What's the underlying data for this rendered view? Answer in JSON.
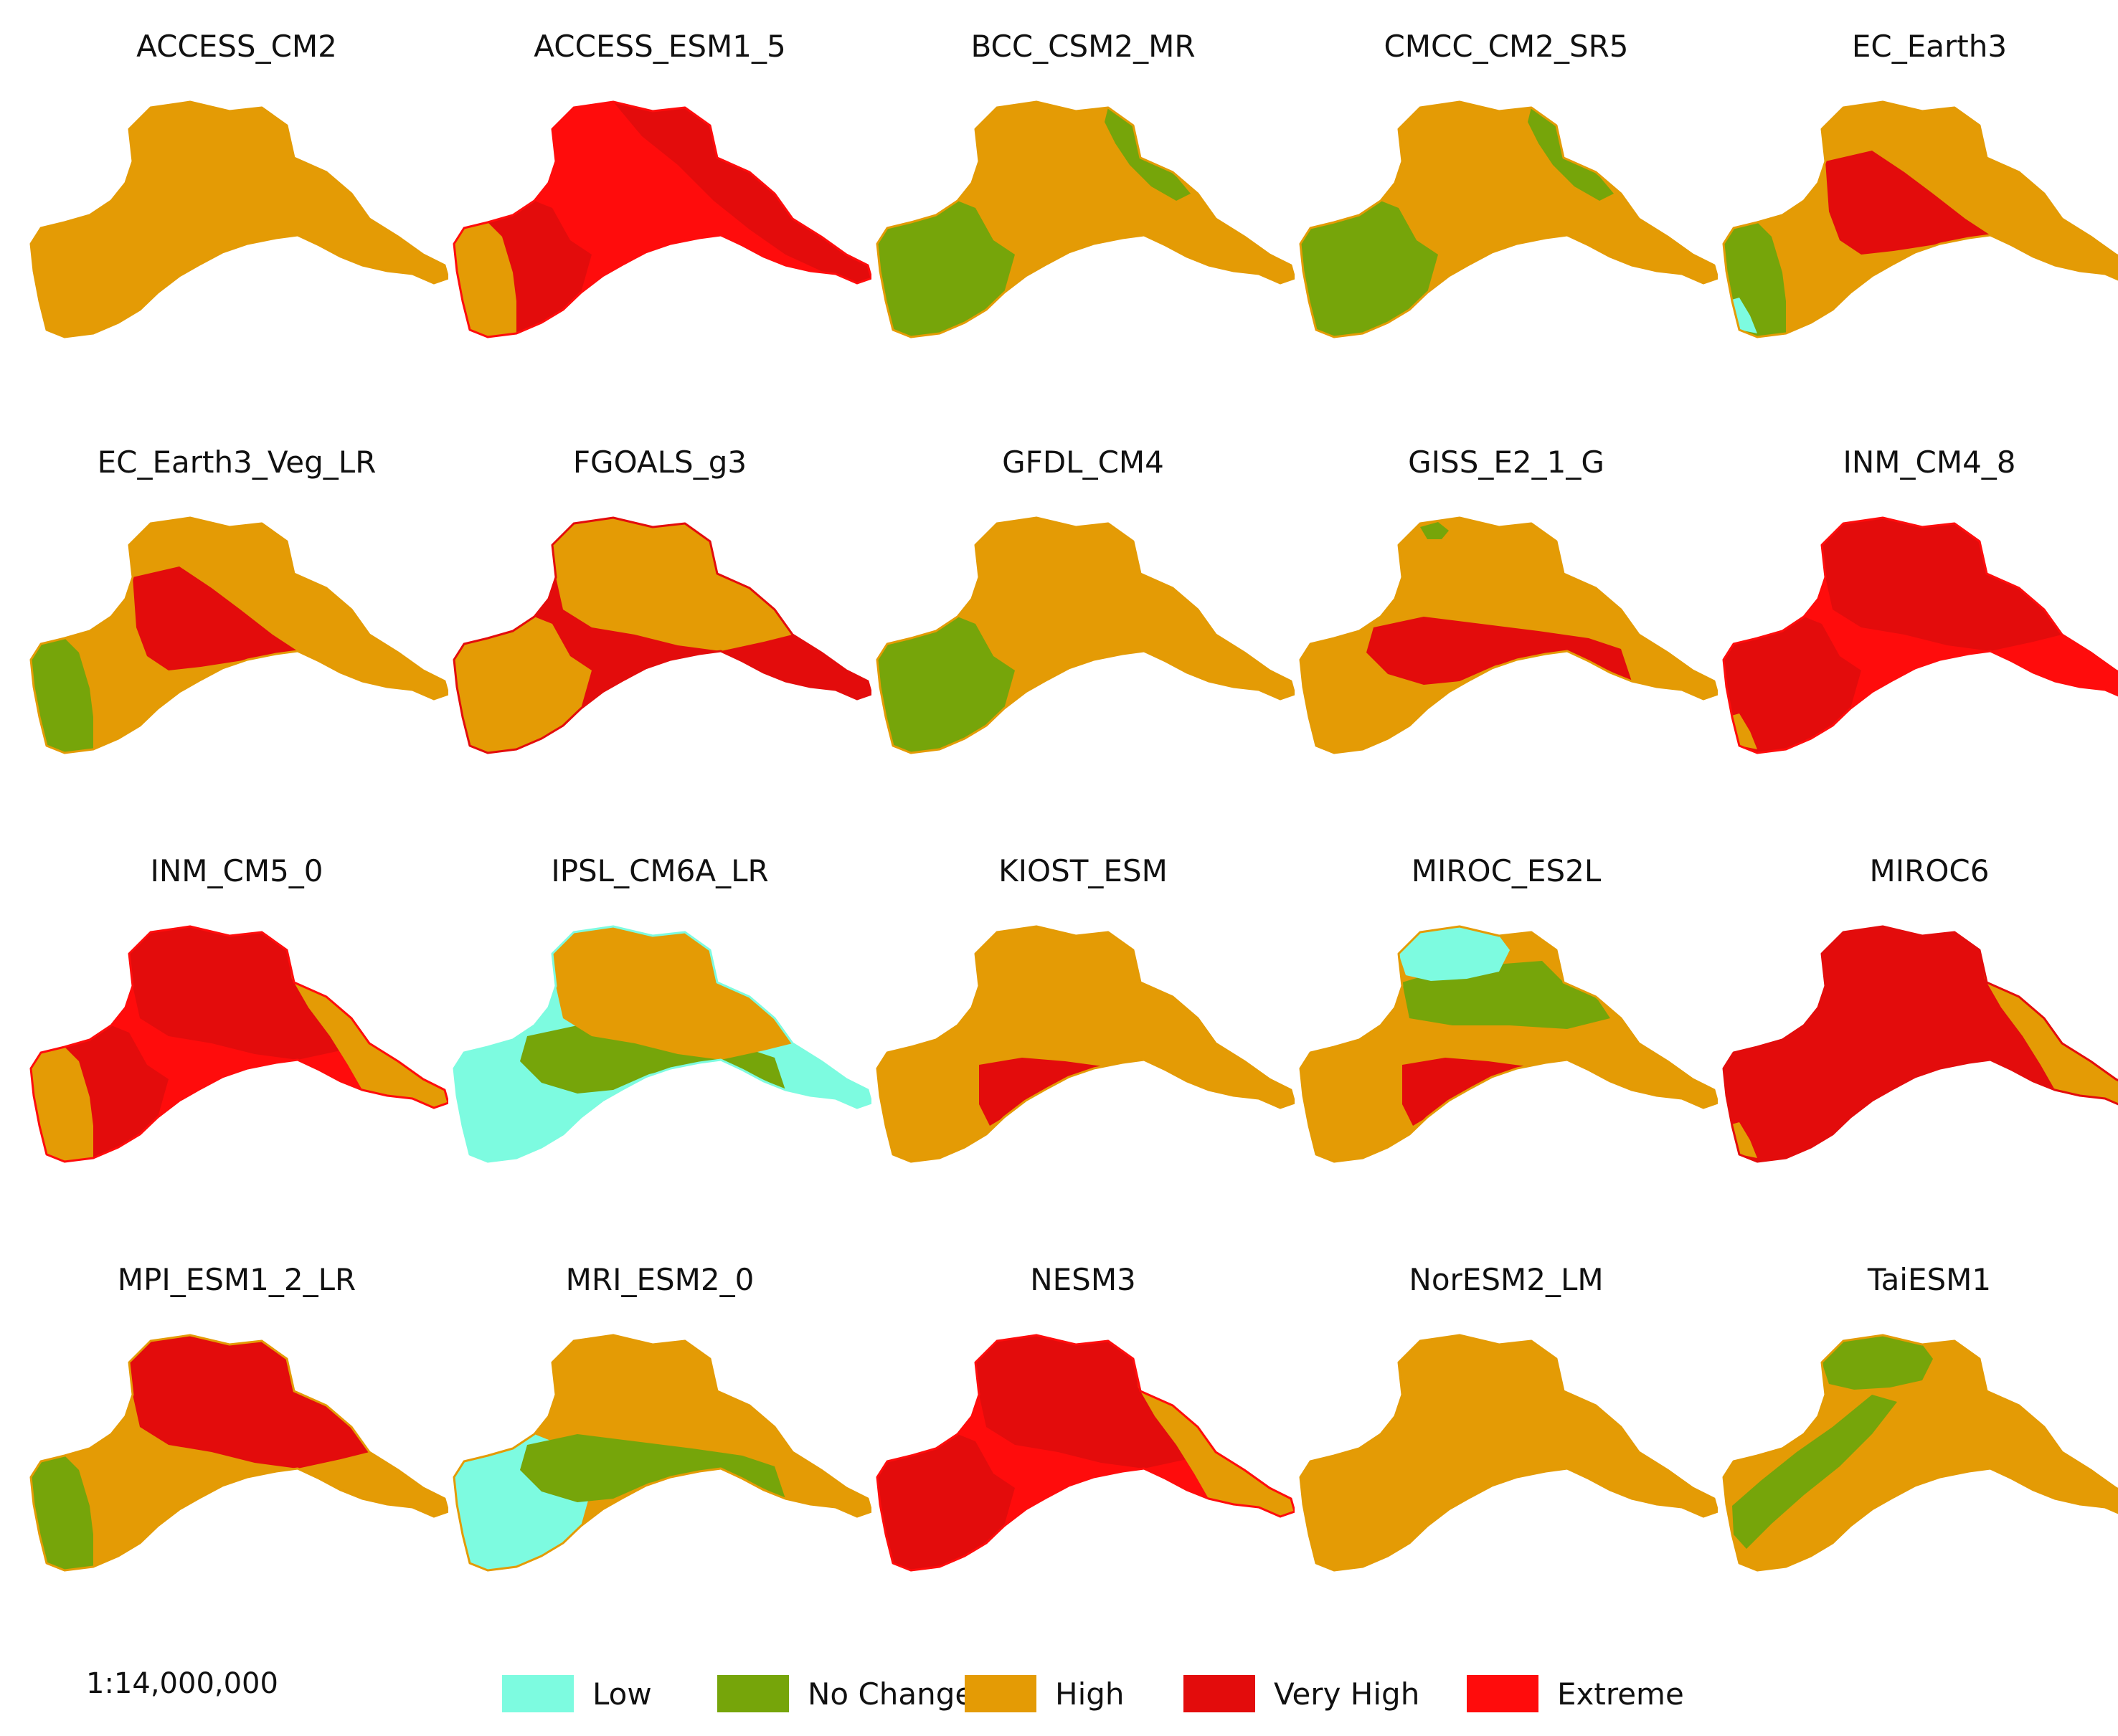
{
  "colors": {
    "Low": "#7dfbe0",
    "No Change": "#76a50a",
    "High": "#e49b05",
    "Very High": "#e30c0c",
    "Extreme": "#ff0c0c"
  },
  "models": [
    {
      "name": "ACCESS_CM2",
      "dominant": "High",
      "zones": [
        {
          "region": "whole",
          "class": "High"
        }
      ]
    },
    {
      "name": "ACCESS_ESM1_5",
      "dominant": "Extreme",
      "zones": [
        {
          "region": "whole",
          "class": "Extreme"
        },
        {
          "region": "northeast",
          "class": "Very High"
        },
        {
          "region": "southwest",
          "class": "Very High"
        },
        {
          "region": "far-southwest",
          "class": "High"
        }
      ]
    },
    {
      "name": "BCC_CSM2_MR",
      "dominant": "High",
      "zones": [
        {
          "region": "whole",
          "class": "High"
        },
        {
          "region": "southwest",
          "class": "No Change"
        },
        {
          "region": "north-strip",
          "class": "No Change"
        }
      ]
    },
    {
      "name": "CMCC_CM2_SR5",
      "dominant": "High",
      "zones": [
        {
          "region": "whole",
          "class": "High"
        },
        {
          "region": "southwest",
          "class": "No Change"
        },
        {
          "region": "north-strip",
          "class": "No Change"
        }
      ]
    },
    {
      "name": "EC_Earth3",
      "dominant": "High",
      "zones": [
        {
          "region": "whole",
          "class": "High"
        },
        {
          "region": "center",
          "class": "Very High"
        },
        {
          "region": "far-southwest",
          "class": "No Change"
        },
        {
          "region": "tip",
          "class": "Low"
        }
      ]
    },
    {
      "name": "EC_Earth3_Veg_LR",
      "dominant": "High",
      "zones": [
        {
          "region": "whole",
          "class": "High"
        },
        {
          "region": "center",
          "class": "Very High"
        },
        {
          "region": "far-southwest",
          "class": "No Change"
        }
      ]
    },
    {
      "name": "FGOALS_g3",
      "dominant": "Very High",
      "zones": [
        {
          "region": "whole",
          "class": "Very High"
        },
        {
          "region": "north",
          "class": "High"
        },
        {
          "region": "southwest",
          "class": "High"
        }
      ]
    },
    {
      "name": "GFDL_CM4",
      "dominant": "High",
      "zones": [
        {
          "region": "whole",
          "class": "High"
        },
        {
          "region": "southwest",
          "class": "No Change"
        }
      ]
    },
    {
      "name": "GISS_E2_1_G",
      "dominant": "High",
      "zones": [
        {
          "region": "whole",
          "class": "High"
        },
        {
          "region": "middle-band",
          "class": "Very High"
        },
        {
          "region": "top-dot",
          "class": "No Change"
        }
      ]
    },
    {
      "name": "INM_CM4_8",
      "dominant": "Extreme",
      "zones": [
        {
          "region": "whole",
          "class": "Extreme"
        },
        {
          "region": "north",
          "class": "Very High"
        },
        {
          "region": "southwest",
          "class": "Very High"
        },
        {
          "region": "tip",
          "class": "High"
        }
      ]
    },
    {
      "name": "INM_CM5_0",
      "dominant": "Extreme",
      "zones": [
        {
          "region": "whole",
          "class": "Extreme"
        },
        {
          "region": "north",
          "class": "Very High"
        },
        {
          "region": "east",
          "class": "High"
        },
        {
          "region": "southwest",
          "class": "Very High"
        },
        {
          "region": "far-southwest",
          "class": "High"
        }
      ]
    },
    {
      "name": "IPSL_CM6A_LR",
      "dominant": "Low",
      "zones": [
        {
          "region": "whole",
          "class": "Low"
        },
        {
          "region": "middle-band",
          "class": "No Change"
        },
        {
          "region": "north",
          "class": "High"
        }
      ]
    },
    {
      "name": "KIOST_ESM",
      "dominant": "High",
      "zones": [
        {
          "region": "whole",
          "class": "High"
        },
        {
          "region": "south-center",
          "class": "Very High"
        }
      ]
    },
    {
      "name": "MIROC_ES2L",
      "dominant": "High",
      "zones": [
        {
          "region": "whole",
          "class": "High"
        },
        {
          "region": "north-band",
          "class": "No Change"
        },
        {
          "region": "top-cap",
          "class": "Low"
        },
        {
          "region": "south-center",
          "class": "Very High"
        }
      ]
    },
    {
      "name": "MIROC6",
      "dominant": "Very High",
      "zones": [
        {
          "region": "whole",
          "class": "Very High"
        },
        {
          "region": "east",
          "class": "High"
        },
        {
          "region": "tip",
          "class": "High"
        }
      ]
    },
    {
      "name": "MPI_ESM1_2_LR",
      "dominant": "High",
      "zones": [
        {
          "region": "whole",
          "class": "High"
        },
        {
          "region": "north",
          "class": "Very High"
        },
        {
          "region": "far-southwest",
          "class": "No Change"
        }
      ]
    },
    {
      "name": "MRI_ESM2_0",
      "dominant": "High",
      "zones": [
        {
          "region": "whole",
          "class": "High"
        },
        {
          "region": "southwest",
          "class": "Low"
        },
        {
          "region": "middle-band",
          "class": "No Change"
        }
      ]
    },
    {
      "name": "NESM3",
      "dominant": "Extreme",
      "zones": [
        {
          "region": "whole",
          "class": "Extreme"
        },
        {
          "region": "north",
          "class": "Very High"
        },
        {
          "region": "southwest",
          "class": "Very High"
        },
        {
          "region": "east",
          "class": "High"
        }
      ]
    },
    {
      "name": "NorESM2_LM",
      "dominant": "High",
      "zones": [
        {
          "region": "whole",
          "class": "High"
        }
      ]
    },
    {
      "name": "TaiESM1",
      "dominant": "High",
      "zones": [
        {
          "region": "whole",
          "class": "High"
        },
        {
          "region": "top-cap",
          "class": "No Change"
        },
        {
          "region": "west-band",
          "class": "No Change"
        }
      ]
    }
  ],
  "scale": "1:14,000,000",
  "legend": [
    {
      "label": "Low",
      "key": "Low"
    },
    {
      "label": "No Change",
      "key": "No Change"
    },
    {
      "label": "High",
      "key": "High"
    },
    {
      "label": "Very High",
      "key": "Very High"
    },
    {
      "label": "Extreme",
      "key": "Extreme"
    }
  ]
}
